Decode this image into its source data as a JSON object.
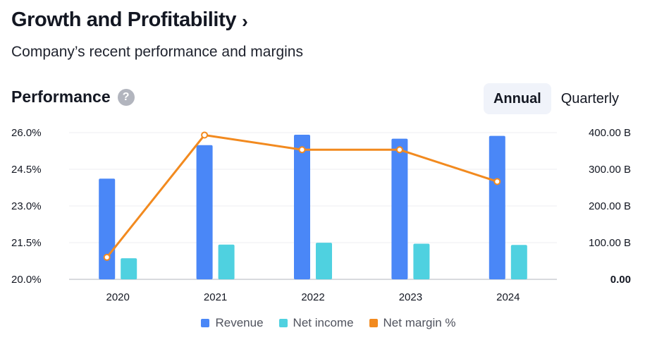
{
  "header": {
    "title": "Growth and Profitability",
    "chevron": "›",
    "subtitle": "Company’s recent performance and margins"
  },
  "performance": {
    "title": "Performance",
    "help_icon": "?",
    "tabs": [
      {
        "label": "Annual",
        "active": true
      },
      {
        "label": "Quarterly",
        "active": false
      }
    ]
  },
  "colors": {
    "revenue": "#4a87f7",
    "net_income": "#4fd1e0",
    "net_margin": "#f28a1f",
    "grid": "#eceef2",
    "axis": "#b2b5be"
  },
  "chart_data": {
    "type": "bar",
    "categories": [
      "2020",
      "2021",
      "2022",
      "2023",
      "2024"
    ],
    "series": [
      {
        "name": "Revenue",
        "axis": "right",
        "type": "bar",
        "values": [
          274.5,
          365.8,
          394.3,
          383.3,
          391.0
        ]
      },
      {
        "name": "Net income",
        "axis": "right",
        "type": "bar",
        "values": [
          57.4,
          94.7,
          99.8,
          97.0,
          93.7
        ]
      },
      {
        "name": "Net margin %",
        "axis": "left",
        "type": "line",
        "values": [
          20.9,
          25.9,
          25.3,
          25.3,
          24.0
        ]
      }
    ],
    "left_axis": {
      "ylim": [
        20.0,
        26.0
      ],
      "ticks": [
        "26.0%",
        "24.5%",
        "23.0%",
        "21.5%",
        "20.0%"
      ]
    },
    "right_axis": {
      "ylim": [
        0,
        400
      ],
      "ticks": [
        "400.00 B",
        "300.00 B",
        "200.00 B",
        "100.00 B",
        "0.00"
      ]
    },
    "legend": [
      "Revenue",
      "Net income",
      "Net margin %"
    ]
  }
}
